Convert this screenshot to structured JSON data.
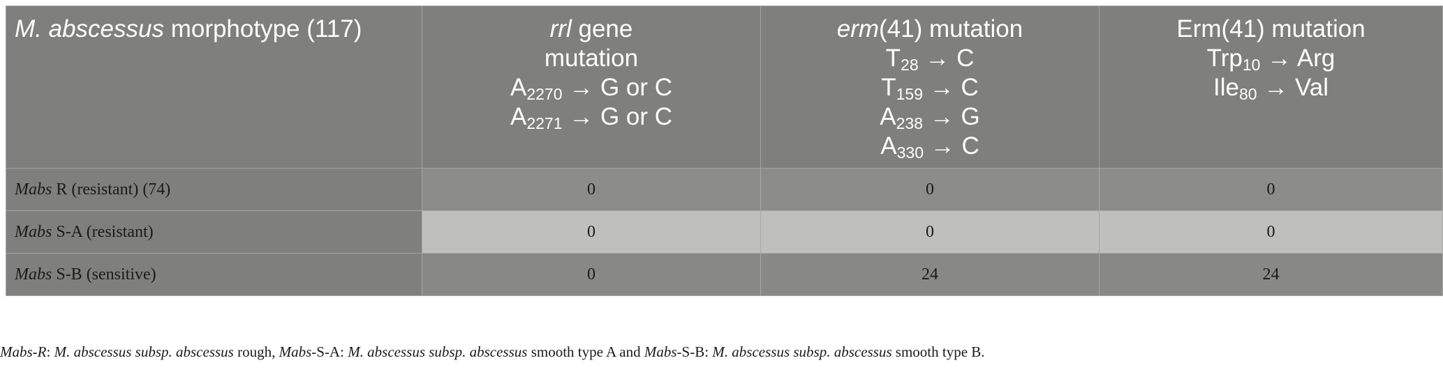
{
  "table": {
    "headers": [
      {
        "italic": "M. abscessus",
        "rest": " morphotype (117)"
      },
      {
        "italic": "rrl",
        "rest": " gene",
        "line2": "mutation",
        "mut1_base": "A",
        "mut1_sub": "2270",
        "mut1_result": " → G or C",
        "mut2_base": "A",
        "mut2_sub": "2271",
        "mut2_result": " → G or C"
      },
      {
        "italic": "erm",
        "rest": "(41) mutation",
        "m1_base": "T",
        "m1_sub": "28",
        "m1_result": " → C",
        "m2_base": "T",
        "m2_sub": "159",
        "m2_result": " → C",
        "m3_base": "A",
        "m3_sub": "238",
        "m3_result": " → G",
        "m4_base": "A",
        "m4_sub": "330",
        "m4_result": " → C"
      },
      {
        "line1": "Erm(41) mutation",
        "m1_base": "Trp",
        "m1_sub": "10",
        "m1_result": " → Arg",
        "m2_base": "Ile",
        "m2_sub": "80",
        "m2_result": " → Val"
      }
    ],
    "rows": [
      {
        "label_italic": "Mabs",
        "label_rest": " R (resistant) (74)",
        "values": [
          "0",
          "0",
          "0"
        ]
      },
      {
        "label_italic": "Mabs",
        "label_rest": " S-A (resistant)",
        "values": [
          "0",
          "0",
          "0"
        ]
      },
      {
        "label_italic": "Mabs",
        "label_rest": " S-B (sensitive)",
        "values": [
          "0",
          "24",
          "24"
        ]
      }
    ]
  },
  "footnote": {
    "p1": "Mabs-R",
    "p2": ": ",
    "p3": "M. abscessus subsp. abscessus",
    "p4": " rough, ",
    "p5": "Mabs",
    "p6": "-S-A: ",
    "p7": "M. abscessus subsp. abscessus",
    "p8": " smooth type A and ",
    "p9": "Mabs",
    "p10": "-S-B: ",
    "p11": "M. abscessus subsp. abscessus",
    "p12": " smooth type B."
  }
}
